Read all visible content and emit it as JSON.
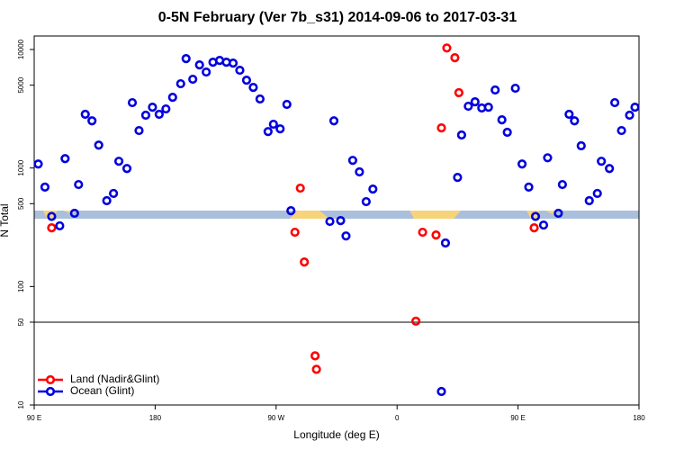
{
  "chart_data": {
    "type": "scatter",
    "title": "0-5N February (Ver 7b_s31)   2014-09-06 to 2017-03-31",
    "x_label": "Longitude (deg E)",
    "y_label": "N Total",
    "xlim": [
      90,
      540
    ],
    "xticks": [
      {
        "value": 90,
        "label": "90 E"
      },
      {
        "value": 180,
        "label": "180"
      },
      {
        "value": 270,
        "label": "90 W"
      },
      {
        "value": 360,
        "label": "0"
      },
      {
        "value": 450,
        "label": "90 E"
      },
      {
        "value": 540,
        "label": "180"
      }
    ],
    "ylim": [
      10,
      13000
    ],
    "log_y": true,
    "yticks": [
      10,
      50,
      100,
      500,
      1000,
      5000,
      10000
    ],
    "reference_line": 50,
    "legend_position": "bottom-left",
    "series": [
      {
        "name": "Land (Nadir&Glint)",
        "color": "#ff0000",
        "x": [
          103,
          284,
          288,
          291,
          299,
          300,
          374,
          379,
          389,
          393,
          397,
          403,
          406,
          462
        ],
        "values": [
          313,
          287,
          676,
          161,
          26,
          20,
          51,
          287,
          272,
          2180,
          10300,
          8530,
          4320,
          313
        ]
      },
      {
        "name": "Ocean (Glint)",
        "color": "#0000dd",
        "x": [
          93,
          98,
          103,
          109,
          113,
          120,
          123,
          128,
          133,
          138,
          144,
          149,
          153,
          159,
          163,
          168,
          173,
          178,
          183,
          188,
          193,
          199,
          203,
          208,
          213,
          218,
          223,
          228,
          233,
          238,
          243,
          248,
          253,
          258,
          264,
          268,
          273,
          278,
          281,
          310,
          313,
          318,
          322,
          327,
          332,
          337,
          342,
          393,
          396,
          405,
          408,
          413,
          418,
          423,
          428,
          433,
          438,
          442,
          448,
          453,
          458,
          463,
          469,
          472,
          480,
          483,
          488,
          492,
          497,
          503,
          509,
          512,
          518,
          522,
          527,
          533,
          537
        ],
        "values": [
          1080,
          690,
          390,
          325,
          1200,
          415,
          725,
          2840,
          2500,
          1560,
          530,
          610,
          1140,
          990,
          3560,
          2070,
          2790,
          3260,
          2840,
          3150,
          3950,
          5140,
          8380,
          5610,
          7410,
          6450,
          7810,
          8090,
          7810,
          7680,
          6680,
          5510,
          4790,
          3820,
          2030,
          2340,
          2140,
          3440,
          436,
          354,
          2500,
          360,
          267,
          1160,
          927,
          520,
          664,
          13,
          233,
          833,
          1900,
          3320,
          3620,
          3210,
          3260,
          4550,
          2550,
          2000,
          4710,
          1080,
          690,
          390,
          330,
          1220,
          415,
          725,
          2840,
          2500,
          1540,
          530,
          610,
          1140,
          990,
          3560,
          2070,
          2790,
          3260
        ]
      }
    ]
  }
}
